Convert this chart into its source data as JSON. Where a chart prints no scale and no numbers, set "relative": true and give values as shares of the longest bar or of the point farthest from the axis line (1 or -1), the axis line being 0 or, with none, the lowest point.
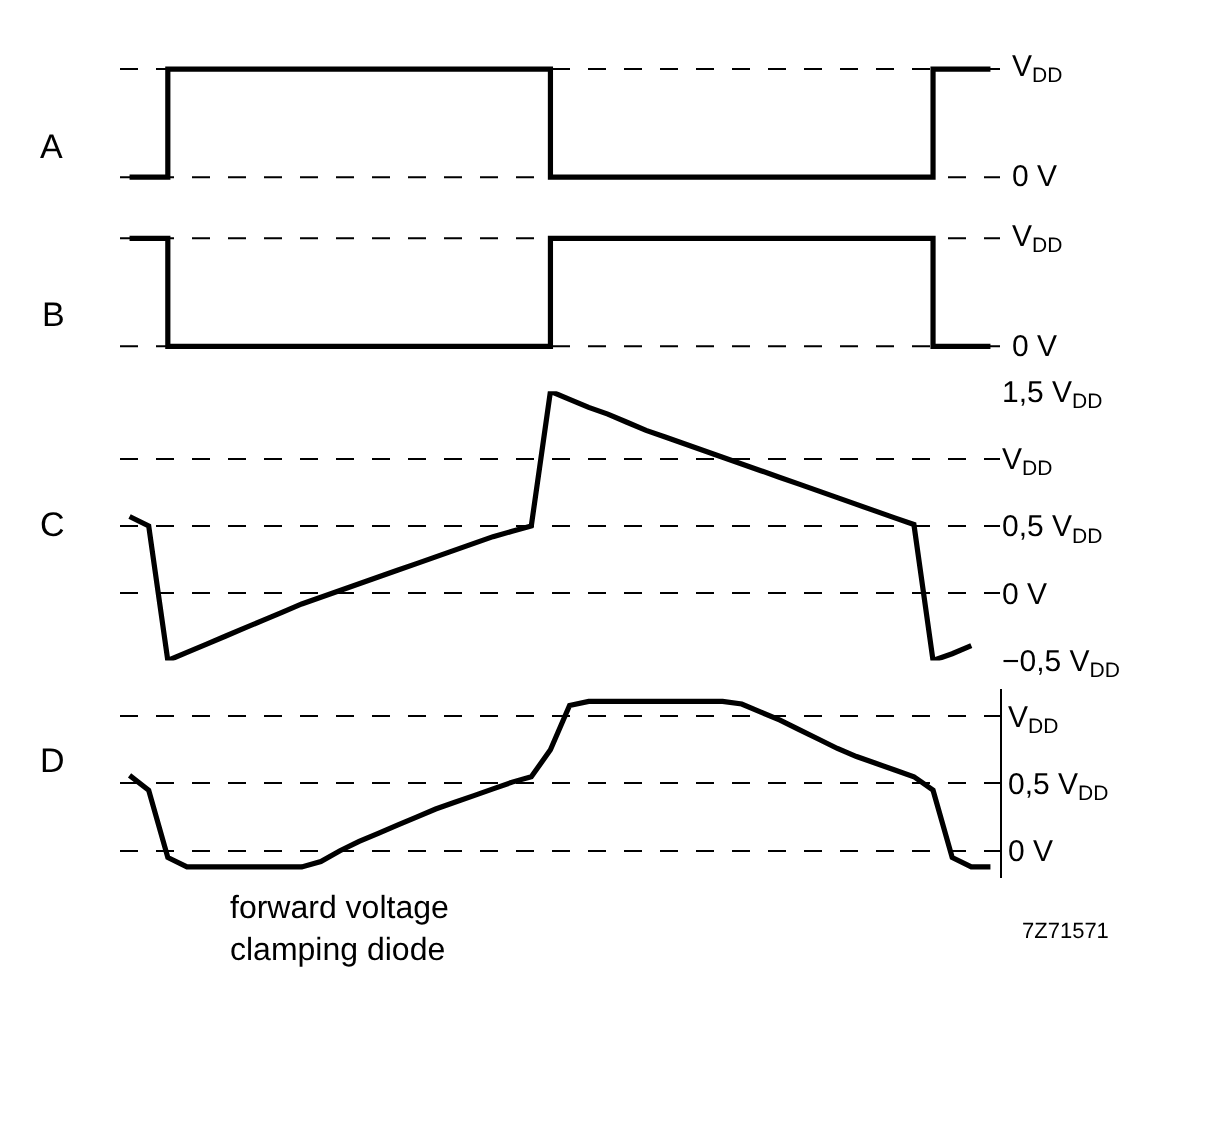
{
  "chart_data": [
    {
      "type": "step",
      "title": "A",
      "categories": [
        null,
        null,
        null,
        null,
        null,
        null,
        null,
        null,
        null,
        null,
        null,
        null,
        null,
        null,
        null,
        null,
        null,
        null,
        null,
        null,
        null,
        null,
        null,
        null,
        null,
        null,
        null,
        null,
        null,
        null,
        null,
        null,
        null,
        null,
        null,
        null,
        null,
        null,
        null,
        null,
        null,
        null,
        null,
        null,
        null,
        null
      ],
      "series": [
        {
          "color": "#000000",
          "values": [
            0,
            0,
            1,
            1,
            1,
            1,
            1,
            1,
            1,
            1,
            1,
            1,
            1,
            1,
            1,
            1,
            1,
            1,
            1,
            1,
            1,
            1,
            0,
            0,
            0,
            0,
            0,
            0,
            0,
            0,
            0,
            0,
            0,
            0,
            0,
            0,
            0,
            0,
            0,
            0,
            0,
            0,
            1,
            1,
            1,
            1
          ]
        }
      ],
      "relative": true,
      "ref_lines": [
        {
          "axis": "y",
          "value": 1,
          "label": "V$_{DD}$",
          "line_style": "dashed"
        },
        {
          "axis": "y",
          "value": 0,
          "label": "0 V",
          "line_style": "dashed"
        }
      ],
      "tick_labels": false
    },
    {
      "type": "step",
      "title": "B",
      "categories": [
        null,
        null,
        null,
        null,
        null,
        null,
        null,
        null,
        null,
        null,
        null,
        null,
        null,
        null,
        null,
        null,
        null,
        null,
        null,
        null,
        null,
        null,
        null,
        null,
        null,
        null,
        null,
        null,
        null,
        null,
        null,
        null,
        null,
        null,
        null,
        null,
        null,
        null,
        null,
        null,
        null,
        null,
        null,
        null,
        null,
        null
      ],
      "series": [
        {
          "color": "#000000",
          "values": [
            1,
            1,
            0,
            0,
            0,
            0,
            0,
            0,
            0,
            0,
            0,
            0,
            0,
            0,
            0,
            0,
            0,
            0,
            0,
            0,
            0,
            0,
            1,
            1,
            1,
            1,
            1,
            1,
            1,
            1,
            1,
            1,
            1,
            1,
            1,
            1,
            1,
            1,
            1,
            1,
            1,
            1,
            0,
            0,
            0,
            0
          ]
        }
      ],
      "relative": true,
      "ref_lines": [
        {
          "axis": "y",
          "value": 1,
          "label": "V$_{DD}$",
          "line_style": "dashed"
        },
        {
          "axis": "y",
          "value": 0,
          "label": "0 V",
          "line_style": "dashed"
        }
      ],
      "tick_labels": false
    },
    {
      "type": "line",
      "title": "C",
      "categories": [
        null,
        null,
        null,
        null,
        null,
        null,
        null,
        null,
        null,
        null,
        null,
        null,
        null,
        null,
        null,
        null,
        null,
        null,
        null,
        null,
        null,
        null,
        null,
        null,
        null,
        null,
        null,
        null,
        null,
        null,
        null,
        null,
        null,
        null,
        null,
        null,
        null,
        null,
        null,
        null,
        null,
        null,
        null,
        null,
        null,
        null
      ],
      "series": [
        {
          "color": "#000000",
          "values": [
            0.57,
            0.5,
            -0.5,
            -0.44,
            -0.38,
            -0.32,
            -0.26,
            -0.2,
            -0.14,
            -0.08,
            -0.03,
            0.02,
            0.07,
            0.12,
            0.17,
            0.22,
            0.27,
            0.32,
            0.37,
            0.42,
            0.46,
            0.5,
            1.5,
            1.44,
            1.38,
            1.33,
            1.27,
            1.21,
            1.16,
            1.11,
            1.06,
            1.01,
            0.96,
            0.91,
            0.86,
            0.81,
            0.76,
            0.71,
            0.66,
            0.61,
            0.56,
            0.51,
            -0.5,
            -0.45,
            -0.39,
            null
          ]
        }
      ],
      "ylim": [
        -0.5,
        1.5
      ],
      "yticks": [
        {
          "value": 1.5,
          "label": "1,5 V$_{DD}$"
        },
        {
          "value": 1,
          "label": "V$_{DD}$"
        },
        {
          "value": 0.5,
          "label": "0,5 V$_{DD}$"
        },
        {
          "value": 0,
          "label": "0 V"
        },
        {
          "value": -0.5,
          "label": "−0,5 V$_{DD}$"
        }
      ],
      "grid": "y",
      "tick_labels": "y"
    },
    {
      "type": "line",
      "title": "D",
      "categories": [
        null,
        null,
        null,
        null,
        null,
        null,
        null,
        null,
        null,
        null,
        null,
        null,
        null,
        null,
        null,
        null,
        null,
        null,
        null,
        null,
        null,
        null,
        null,
        null,
        null,
        null,
        null,
        null,
        null,
        null,
        null,
        null,
        null,
        null,
        null,
        null,
        null,
        null,
        null,
        null,
        null,
        null,
        null,
        null,
        null,
        null
      ],
      "series": [
        {
          "color": "#000000",
          "values": [
            0.56,
            0.45,
            -0.05,
            -0.12,
            -0.12,
            -0.12,
            -0.12,
            -0.12,
            -0.12,
            -0.12,
            -0.08,
            0.0,
            0.07,
            0.13,
            0.19,
            0.25,
            0.31,
            0.36,
            0.41,
            0.46,
            0.51,
            0.55,
            0.75,
            1.08,
            1.11,
            1.11,
            1.11,
            1.11,
            1.11,
            1.11,
            1.11,
            1.11,
            1.09,
            1.03,
            0.97,
            0.9,
            0.83,
            0.76,
            0.7,
            0.65,
            0.6,
            0.55,
            0.45,
            -0.05,
            -0.12,
            -0.12
          ]
        }
      ],
      "ylim": [
        -0.2,
        1.2
      ],
      "yticks": [
        {
          "value": 1,
          "label": "V$_{DD}$"
        },
        {
          "value": 0.5,
          "label": "0,5 V$_{DD}$"
        },
        {
          "value": 0,
          "label": "0 V"
        }
      ],
      "grid": "y",
      "tick_labels": "y",
      "annotations": [
        "forward voltage\nclamping diode",
        "7Z71571"
      ]
    }
  ]
}
